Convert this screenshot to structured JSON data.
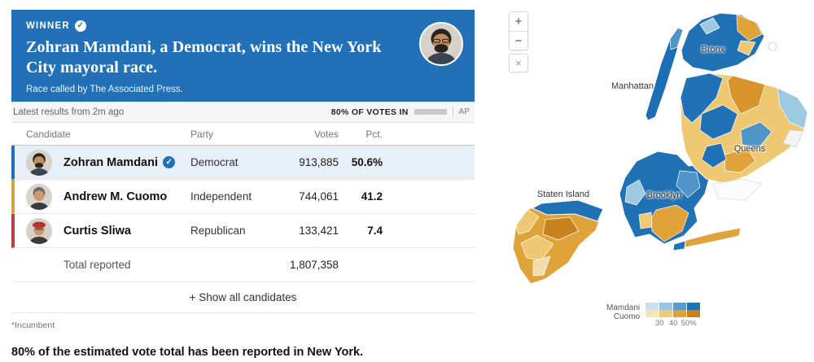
{
  "banner": {
    "winner_label": "WINNER",
    "headline": "Zohran Mamdani, a Democrat, wins the New York City mayoral race.",
    "subtitle": "Race called by The Associated Press.",
    "accent_color": "#2271b8"
  },
  "results": {
    "updated_label": "Latest results from 2m ago",
    "votes_in_label": "80% OF VOTES IN",
    "votes_in_pct": 80,
    "source_label": "AP",
    "columns": {
      "candidate": "Candidate",
      "party": "Party",
      "votes": "Votes",
      "pct": "Pct."
    },
    "candidates": [
      {
        "name": "Zohran Mamdani",
        "party": "Democrat",
        "votes": "913,885",
        "pct": "50.6%",
        "pct_value": 50.6,
        "color": "#2271b8",
        "winner": true
      },
      {
        "name": "Andrew M. Cuomo",
        "party": "Independent",
        "votes": "744,061",
        "pct": "41.2",
        "pct_value": 41.2,
        "color": "#d6a33c",
        "winner": false
      },
      {
        "name": "Curtis Sliwa",
        "party": "Republican",
        "votes": "133,421",
        "pct": "7.4",
        "pct_value": 7.4,
        "color": "#bf3a48",
        "winner": false
      }
    ],
    "total_label": "Total reported",
    "total_votes": "1,807,358",
    "show_all_label": "+ Show all candidates",
    "incumbent_note": "*Incumbent",
    "footer_note": "80% of the estimated vote total has been reported in New York."
  },
  "map": {
    "zoom_in": "+",
    "zoom_out": "−",
    "close": "×",
    "borough_labels": [
      "Bronx",
      "Manhattan",
      "Queens",
      "Brooklyn",
      "Staten Island"
    ],
    "legend": {
      "row1_label": "Mamdani",
      "row2_label": "Cuomo",
      "ticks": [
        "30",
        "40",
        "50%"
      ],
      "mamdani_colors": [
        "#cfe0ef",
        "#9dc5e1",
        "#5b9ace",
        "#2171b5"
      ],
      "cuomo_colors": [
        "#f6e4b5",
        "#eec979",
        "#dfa23a",
        "#c9811c"
      ]
    }
  }
}
